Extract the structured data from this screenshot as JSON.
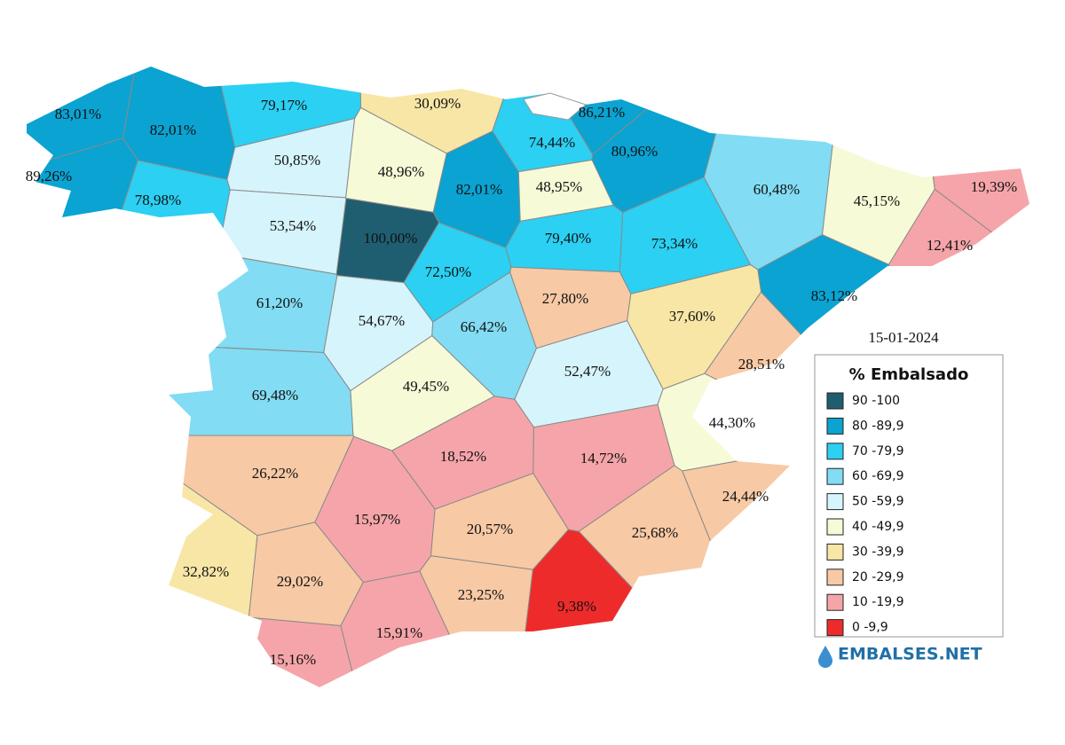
{
  "date": "15-01-2024",
  "legend": {
    "title": "% Embalsado",
    "items": [
      {
        "label": "90 -100",
        "color": "#1f5e70"
      },
      {
        "label": "80 -89,9",
        "color": "#0aa3d2"
      },
      {
        "label": "70 -79,9",
        "color": "#2bd0f3"
      },
      {
        "label": "60 -69,9",
        "color": "#82dcf3"
      },
      {
        "label": "50 -59,9",
        "color": "#d6f4fb"
      },
      {
        "label": "40 -49,9",
        "color": "#f6fad6"
      },
      {
        "label": "30 -39,9",
        "color": "#f8e6a6"
      },
      {
        "label": "20 -29,9",
        "color": "#f7c9a5"
      },
      {
        "label": "10 -19,9",
        "color": "#f5a5a9"
      },
      {
        "label": "0 -9,9",
        "color": "#ee2b2b"
      }
    ]
  },
  "brand": "EMBALSES.NET",
  "regions": [
    {
      "label": "83,01%",
      "color": "#0aa3d2"
    },
    {
      "label": "82,01%",
      "color": "#0aa3d2"
    },
    {
      "label": "89,26%",
      "color": "#0aa3d2"
    },
    {
      "label": "79,17%",
      "color": "#2bd0f3"
    },
    {
      "label": "78,98%",
      "color": "#2bd0f3"
    },
    {
      "label": "50,85%",
      "color": "#d6f4fb"
    },
    {
      "label": "53,54%",
      "color": "#d6f4fb"
    },
    {
      "label": "100,00%",
      "color": "#1f5e70"
    },
    {
      "label": "48,96%",
      "color": "#f6fad6"
    },
    {
      "label": "30,09%",
      "color": "#f8e6a6"
    },
    {
      "label": "82,01%",
      "color": "#0aa3d2"
    },
    {
      "label": "74,44%",
      "color": "#2bd0f3"
    },
    {
      "label": "86,21%",
      "color": "#0aa3d2"
    },
    {
      "label": "80,96%",
      "color": "#0aa3d2"
    },
    {
      "label": "48,95%",
      "color": "#f6fad6"
    },
    {
      "label": "79,40%",
      "color": "#2bd0f3"
    },
    {
      "label": "73,34%",
      "color": "#2bd0f3"
    },
    {
      "label": "60,48%",
      "color": "#82dcf3"
    },
    {
      "label": "45,15%",
      "color": "#f6fad6"
    },
    {
      "label": "19,39%",
      "color": "#f5a5a9"
    },
    {
      "label": "12,41%",
      "color": "#f5a5a9"
    },
    {
      "label": "83,12%",
      "color": "#0aa3d2"
    },
    {
      "label": "72,50%",
      "color": "#2bd0f3"
    },
    {
      "label": "61,20%",
      "color": "#82dcf3"
    },
    {
      "label": "54,67%",
      "color": "#d6f4fb"
    },
    {
      "label": "66,42%",
      "color": "#82dcf3"
    },
    {
      "label": "27,80%",
      "color": "#f7c9a5"
    },
    {
      "label": "37,60%",
      "color": "#f8e6a6"
    },
    {
      "label": "28,51%",
      "color": "#f7c9a5"
    },
    {
      "label": "52,47%",
      "color": "#d6f4fb"
    },
    {
      "label": "49,45%",
      "color": "#f6fad6"
    },
    {
      "label": "69,48%",
      "color": "#82dcf3"
    },
    {
      "label": "44,30%",
      "color": "#f6fad6"
    },
    {
      "label": "26,22%",
      "color": "#f7c9a5"
    },
    {
      "label": "18,52%",
      "color": "#f5a5a9"
    },
    {
      "label": "14,72%",
      "color": "#f5a5a9"
    },
    {
      "label": "24,44%",
      "color": "#f7c9a5"
    },
    {
      "label": "15,97%",
      "color": "#f5a5a9"
    },
    {
      "label": "20,57%",
      "color": "#f7c9a5"
    },
    {
      "label": "25,68%",
      "color": "#f7c9a5"
    },
    {
      "label": "32,82%",
      "color": "#f8e6a6"
    },
    {
      "label": "29,02%",
      "color": "#f7c9a5"
    },
    {
      "label": "23,25%",
      "color": "#f7c9a5"
    },
    {
      "label": "9,38%",
      "color": "#ee2b2b"
    },
    {
      "label": "15,91%",
      "color": "#f5a5a9"
    },
    {
      "label": "15,16%",
      "color": "#f5a5a9"
    }
  ]
}
